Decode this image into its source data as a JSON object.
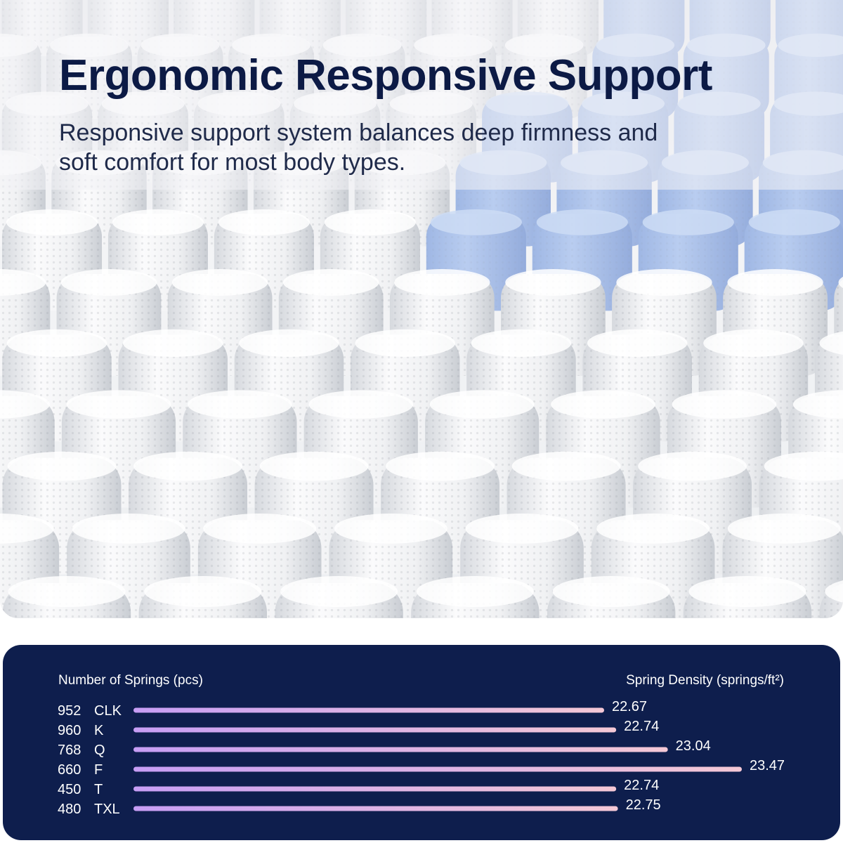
{
  "header": {
    "title": "Ergonomic Responsive Support",
    "subtitle": "Responsive support system balances deep firmness and soft comfort for most body types."
  },
  "colors": {
    "panel_bg": "#0e1e4d",
    "title": "#0c1a45",
    "bar_start": "#c79ef5",
    "bar_end": "#f4c8d6",
    "coil_white": "#f7f7f8",
    "coil_blue": "#b9cdf0"
  },
  "chart_data": {
    "type": "bar",
    "orientation": "horizontal",
    "left_label": "Number of Springs (pcs)",
    "right_label": "Spring Density (springs/ft²)",
    "rows": [
      {
        "count": "952",
        "size": "CLK",
        "density": 22.67
      },
      {
        "count": "960",
        "size": "K",
        "density": 22.74
      },
      {
        "count": "768",
        "size": "Q",
        "density": 23.04
      },
      {
        "count": "660",
        "size": "F",
        "density": 23.47
      },
      {
        "count": "450",
        "size": "T",
        "density": 22.74
      },
      {
        "count": "480",
        "size": "TXL",
        "density": 22.75
      }
    ],
    "grid": false,
    "legend": "none"
  }
}
